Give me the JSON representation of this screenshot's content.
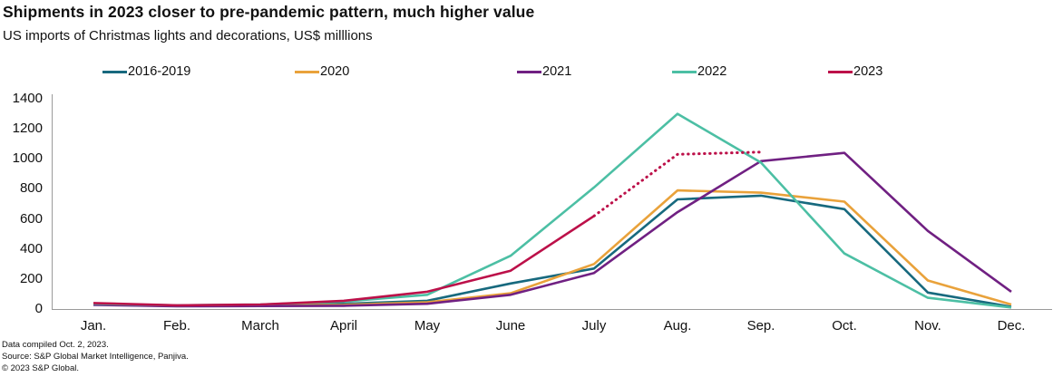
{
  "header": {
    "title": "Shipments in 2023 closer to pre-pandemic pattern, much higher value",
    "subtitle": "US imports of Christmas lights and decorations, US$ milllions"
  },
  "chart_data": {
    "type": "line",
    "title": "Shipments in 2023 closer to pre-pandemic pattern, much higher value",
    "subtitle": "US imports of Christmas lights and decorations, US$ milllions",
    "x": [
      "Jan.",
      "Feb.",
      "March",
      "April",
      "May",
      "June",
      "July",
      "Aug.",
      "Sep.",
      "Oct.",
      "Nov.",
      "Dec."
    ],
    "series": [
      {
        "name": "2016-2019",
        "color": "#17697e",
        "values": [
          30,
          20,
          25,
          35,
          55,
          170,
          270,
          730,
          755,
          665,
          110,
          15
        ]
      },
      {
        "name": "2020",
        "color": "#e9a23b",
        "values": [
          35,
          22,
          25,
          28,
          45,
          105,
          300,
          790,
          775,
          715,
          190,
          30
        ]
      },
      {
        "name": "2021",
        "color": "#702082",
        "values": [
          28,
          18,
          20,
          22,
          35,
          95,
          240,
          645,
          985,
          1040,
          520,
          115
        ]
      },
      {
        "name": "2022",
        "color": "#4cbfa4",
        "values": [
          35,
          25,
          30,
          50,
          95,
          355,
          810,
          1300,
          975,
          370,
          75,
          10
        ]
      },
      {
        "name": "2023",
        "color": "#bc1049",
        "values": [
          40,
          25,
          30,
          55,
          115,
          255,
          620,
          1030,
          1045
        ],
        "dotted_from_index": 6,
        "note": "solid Jan-July, dotted (projected) July-Sep"
      }
    ],
    "ylim": [
      0,
      1400
    ],
    "y_ticks": [
      0,
      200,
      400,
      600,
      800,
      1000,
      1200,
      1400
    ],
    "legend_position": "top",
    "grid": false,
    "axis_color": "#9a9a9a"
  },
  "footer": {
    "line1": "Data compiled Oct. 2, 2023.",
    "line2": "Source: S&P Global Market Intelligence, Panjiva.",
    "line3": "© 2023 S&P Global."
  }
}
